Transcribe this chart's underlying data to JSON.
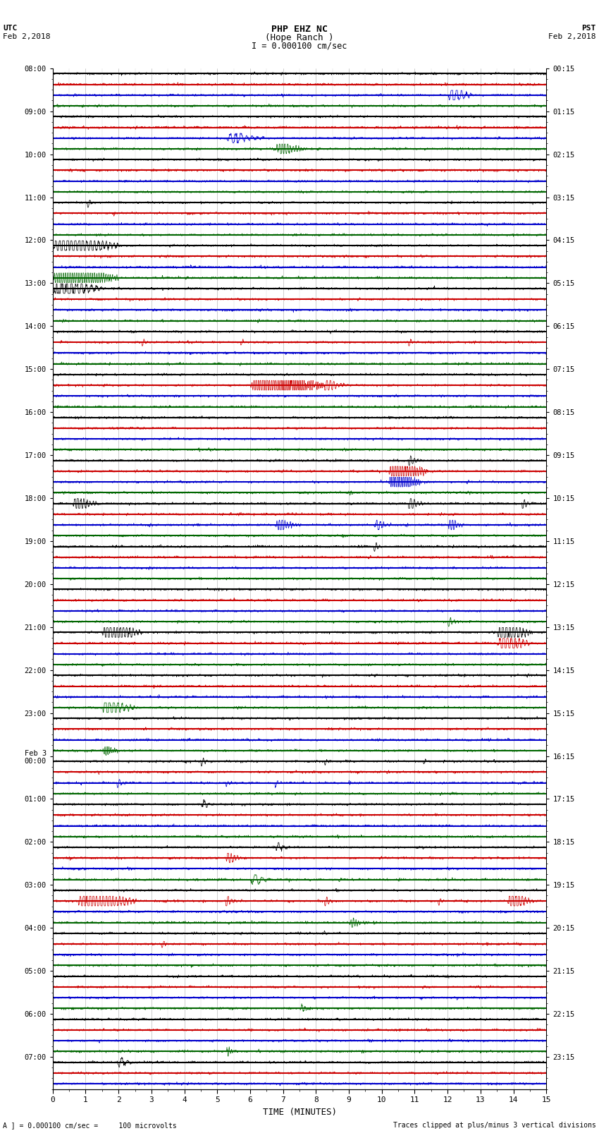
{
  "title_line1": "PHP EHZ NC",
  "title_line2": "(Hope Ranch )",
  "title_line3": "I = 0.000100 cm/sec",
  "left_label_line1": "UTC",
  "left_label_line2": "Feb 2,2018",
  "right_label_line1": "PST",
  "right_label_line2": "Feb 2,2018",
  "xlabel": "TIME (MINUTES)",
  "footer_left": "A ] = 0.000100 cm/sec =     100 microvolts",
  "footer_right": "Traces clipped at plus/minus 3 vertical divisions",
  "utc_labels": [
    "08:00",
    "09:00",
    "10:00",
    "11:00",
    "12:00",
    "13:00",
    "14:00",
    "15:00",
    "16:00",
    "17:00",
    "18:00",
    "19:00",
    "20:00",
    "21:00",
    "22:00",
    "23:00",
    "Feb 3\n00:00",
    "01:00",
    "02:00",
    "03:00",
    "04:00",
    "05:00",
    "06:00",
    "07:00"
  ],
  "utc_rows": [
    0,
    4,
    8,
    12,
    16,
    20,
    24,
    28,
    32,
    36,
    40,
    44,
    48,
    52,
    56,
    60,
    64,
    68,
    72,
    76,
    80,
    84,
    88,
    92
  ],
  "pst_labels": [
    "00:15",
    "01:15",
    "02:15",
    "03:15",
    "04:15",
    "05:15",
    "06:15",
    "07:15",
    "08:15",
    "09:15",
    "10:15",
    "11:15",
    "12:15",
    "13:15",
    "14:15",
    "15:15",
    "16:15",
    "17:15",
    "18:15",
    "19:15",
    "20:15",
    "21:15",
    "22:15",
    "23:15"
  ],
  "pst_rows": [
    0,
    4,
    8,
    12,
    16,
    20,
    24,
    28,
    32,
    36,
    40,
    44,
    48,
    52,
    56,
    60,
    64,
    68,
    72,
    76,
    80,
    84,
    88,
    92
  ],
  "n_rows": 95,
  "n_minutes": 15,
  "bg_color": "#ffffff",
  "trace_colors_cycle": [
    "#000000",
    "#cc0000",
    "#0000cc",
    "#006600"
  ],
  "seed": 12345
}
